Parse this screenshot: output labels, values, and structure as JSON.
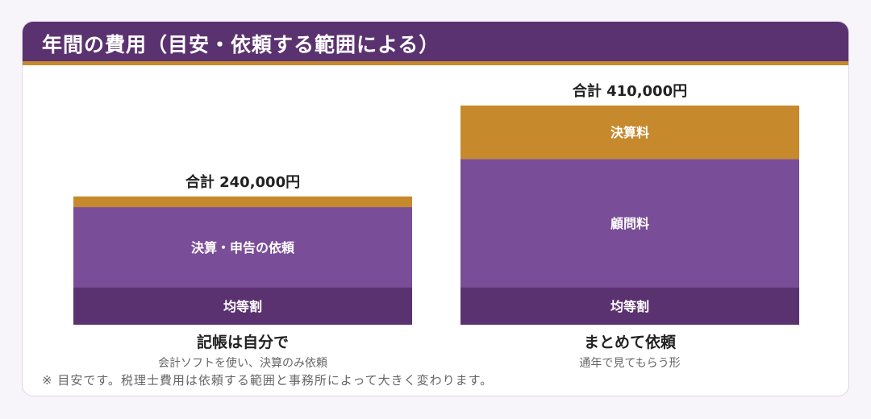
{
  "title": "年間の費用（目安・依頼する範囲による）",
  "note": "※ 目安です。税理士費用は依頼する範囲と事務所によって大きく変わります。",
  "colors": {
    "header": "#5b3270",
    "accent": "#c6892c",
    "kintou": "#5b3270",
    "main": "#7a4d98",
    "kessan": "#c6892c"
  },
  "chart_data": {
    "type": "bar",
    "stacked": true,
    "ylim": [
      0,
      410000
    ],
    "unit": "円",
    "bars": [
      {
        "label": "記帳は自分で",
        "sublabel": "会計ソフトを使い、決算のみ依頼",
        "total_label": "合計 240,000円",
        "total": 240000,
        "segments": [
          {
            "name": "均等割",
            "value": 70000,
            "color": "#5b3270"
          },
          {
            "name": "決算・申告の依頼",
            "value": 150000,
            "color": "#7a4d98"
          },
          {
            "name": "",
            "value": 20000,
            "color": "#c6892c"
          }
        ]
      },
      {
        "label": "まとめて依頼",
        "sublabel": "通年で見てもらう形",
        "total_label": "合計 410,000円",
        "total": 410000,
        "segments": [
          {
            "name": "均等割",
            "value": 70000,
            "color": "#5b3270"
          },
          {
            "name": "顧問料",
            "value": 240000,
            "color": "#7a4d98"
          },
          {
            "name": "決算料",
            "value": 100000,
            "color": "#c6892c"
          }
        ]
      }
    ]
  }
}
